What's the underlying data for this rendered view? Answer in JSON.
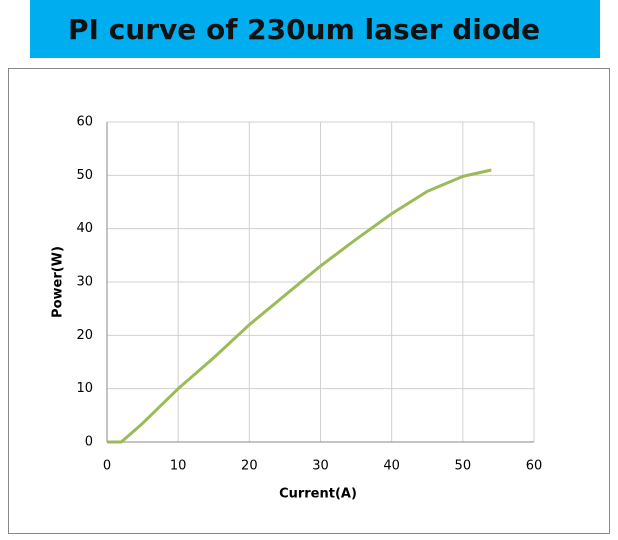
{
  "chart_data": {
    "type": "line",
    "title": "PI curve of 230um laser diode",
    "x_label": "Current(A)",
    "y_label": "Power(W)",
    "x": [
      0,
      2,
      5,
      10,
      15,
      20,
      25,
      30,
      35,
      40,
      45,
      50,
      54
    ],
    "series": [
      {
        "name": "Power",
        "color": "#9bbb59",
        "values": [
          0,
          0,
          3.5,
          10,
          15.8,
          22,
          27.5,
          33,
          38,
          42.8,
          47,
          49.8,
          51
        ]
      }
    ],
    "xlim": [
      0,
      60
    ],
    "xticks": [
      0,
      10,
      20,
      30,
      40,
      50,
      60
    ],
    "ylim": [
      0,
      60
    ],
    "yticks": [
      0,
      10,
      20,
      30,
      40,
      50,
      60
    ],
    "grid": true
  }
}
